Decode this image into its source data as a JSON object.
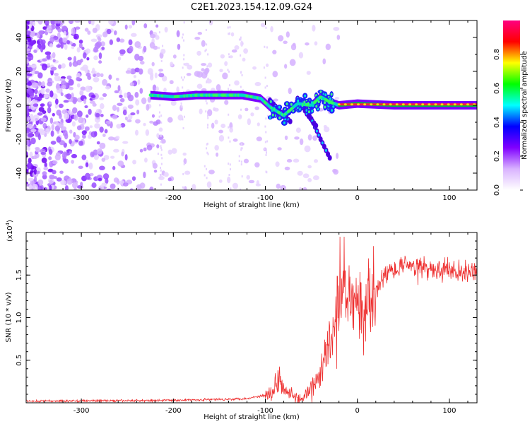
{
  "figure": {
    "title": "C2E1.2023.154.12.09.G24"
  },
  "chart_data": [
    {
      "type": "heatmap",
      "xlabel": "Height of straight line (km)",
      "ylabel": "Frequency (Hz)",
      "xlim": [
        -360,
        130
      ],
      "ylim": [
        -50,
        50
      ],
      "xticks": [
        -300,
        -200,
        -100,
        0,
        100
      ],
      "yticks": [
        -40,
        -20,
        0,
        20,
        40
      ],
      "colorbar": {
        "label": "Normalized spectral amplitude",
        "range": [
          0,
          1
        ],
        "ticks": [
          "0.0",
          "0.2",
          "0.4",
          "0.6",
          "0.8"
        ],
        "colors": [
          "#ffffff",
          "#d9b3ff",
          "#8000ff",
          "#0000ff",
          "#00ffff",
          "#00ff00",
          "#ffff00",
          "#ff0000",
          "#ff0080"
        ]
      },
      "ridge": [
        {
          "x": -225,
          "y": 6
        },
        {
          "x": -200,
          "y": 5
        },
        {
          "x": -175,
          "y": 6
        },
        {
          "x": -150,
          "y": 6
        },
        {
          "x": -125,
          "y": 6
        },
        {
          "x": -105,
          "y": 4
        },
        {
          "x": -95,
          "y": -1
        },
        {
          "x": -80,
          "y": -6
        },
        {
          "x": -65,
          "y": 1
        },
        {
          "x": -50,
          "y": 0
        },
        {
          "x": -40,
          "y": 5
        },
        {
          "x": -30,
          "y": 2
        },
        {
          "x": -20,
          "y": 0
        },
        {
          "x": 0,
          "y": 1
        },
        {
          "x": 40,
          "y": 0
        },
        {
          "x": 80,
          "y": 0
        },
        {
          "x": 130,
          "y": 0
        }
      ],
      "branches": [
        [
          {
            "x": -95,
            "y": 3
          },
          {
            "x": -80,
            "y": -6
          },
          {
            "x": -72,
            "y": -10
          }
        ],
        [
          {
            "x": -60,
            "y": 0
          },
          {
            "x": -50,
            "y": -8
          },
          {
            "x": -40,
            "y": -20
          },
          {
            "x": -30,
            "y": -31
          }
        ],
        [
          {
            "x": -65,
            "y": 4
          },
          {
            "x": -55,
            "y": -5
          },
          {
            "x": -45,
            "y": -12
          }
        ]
      ],
      "noise_region": [
        -360,
        -120
      ]
    },
    {
      "type": "line",
      "xlabel": "Height of straight line (km)",
      "ylabel": "SNR (10 * v/v)",
      "ylabel_exponent": "(x10",
      "exponent_value": "4",
      "exponent_close": ")",
      "xlim": [
        -360,
        130
      ],
      "ylim": [
        0,
        20000
      ],
      "xticks": [
        -300,
        -200,
        -100,
        0,
        100
      ],
      "yticks": [
        5000,
        10000,
        15000
      ],
      "ytick_labels": [
        "0.5",
        "1.0",
        "1.5"
      ],
      "color": "#ee3030",
      "x": [
        -360,
        -250,
        -200,
        -150,
        -120,
        -100,
        -90,
        -85,
        -80,
        -70,
        -60,
        -50,
        -40,
        -30,
        -25,
        -20,
        -15,
        -10,
        -5,
        0,
        10,
        20,
        30,
        40,
        50,
        60,
        70,
        80,
        90,
        100,
        110,
        120,
        130
      ],
      "y": [
        200,
        250,
        300,
        400,
        500,
        900,
        1500,
        3500,
        2000,
        800,
        300,
        1500,
        3500,
        7000,
        8500,
        11000,
        13000,
        12000,
        12500,
        11000,
        12000,
        13500,
        15000,
        15800,
        16300,
        16000,
        15800,
        15700,
        15500,
        15600,
        15300,
        15400,
        15300
      ]
    }
  ]
}
